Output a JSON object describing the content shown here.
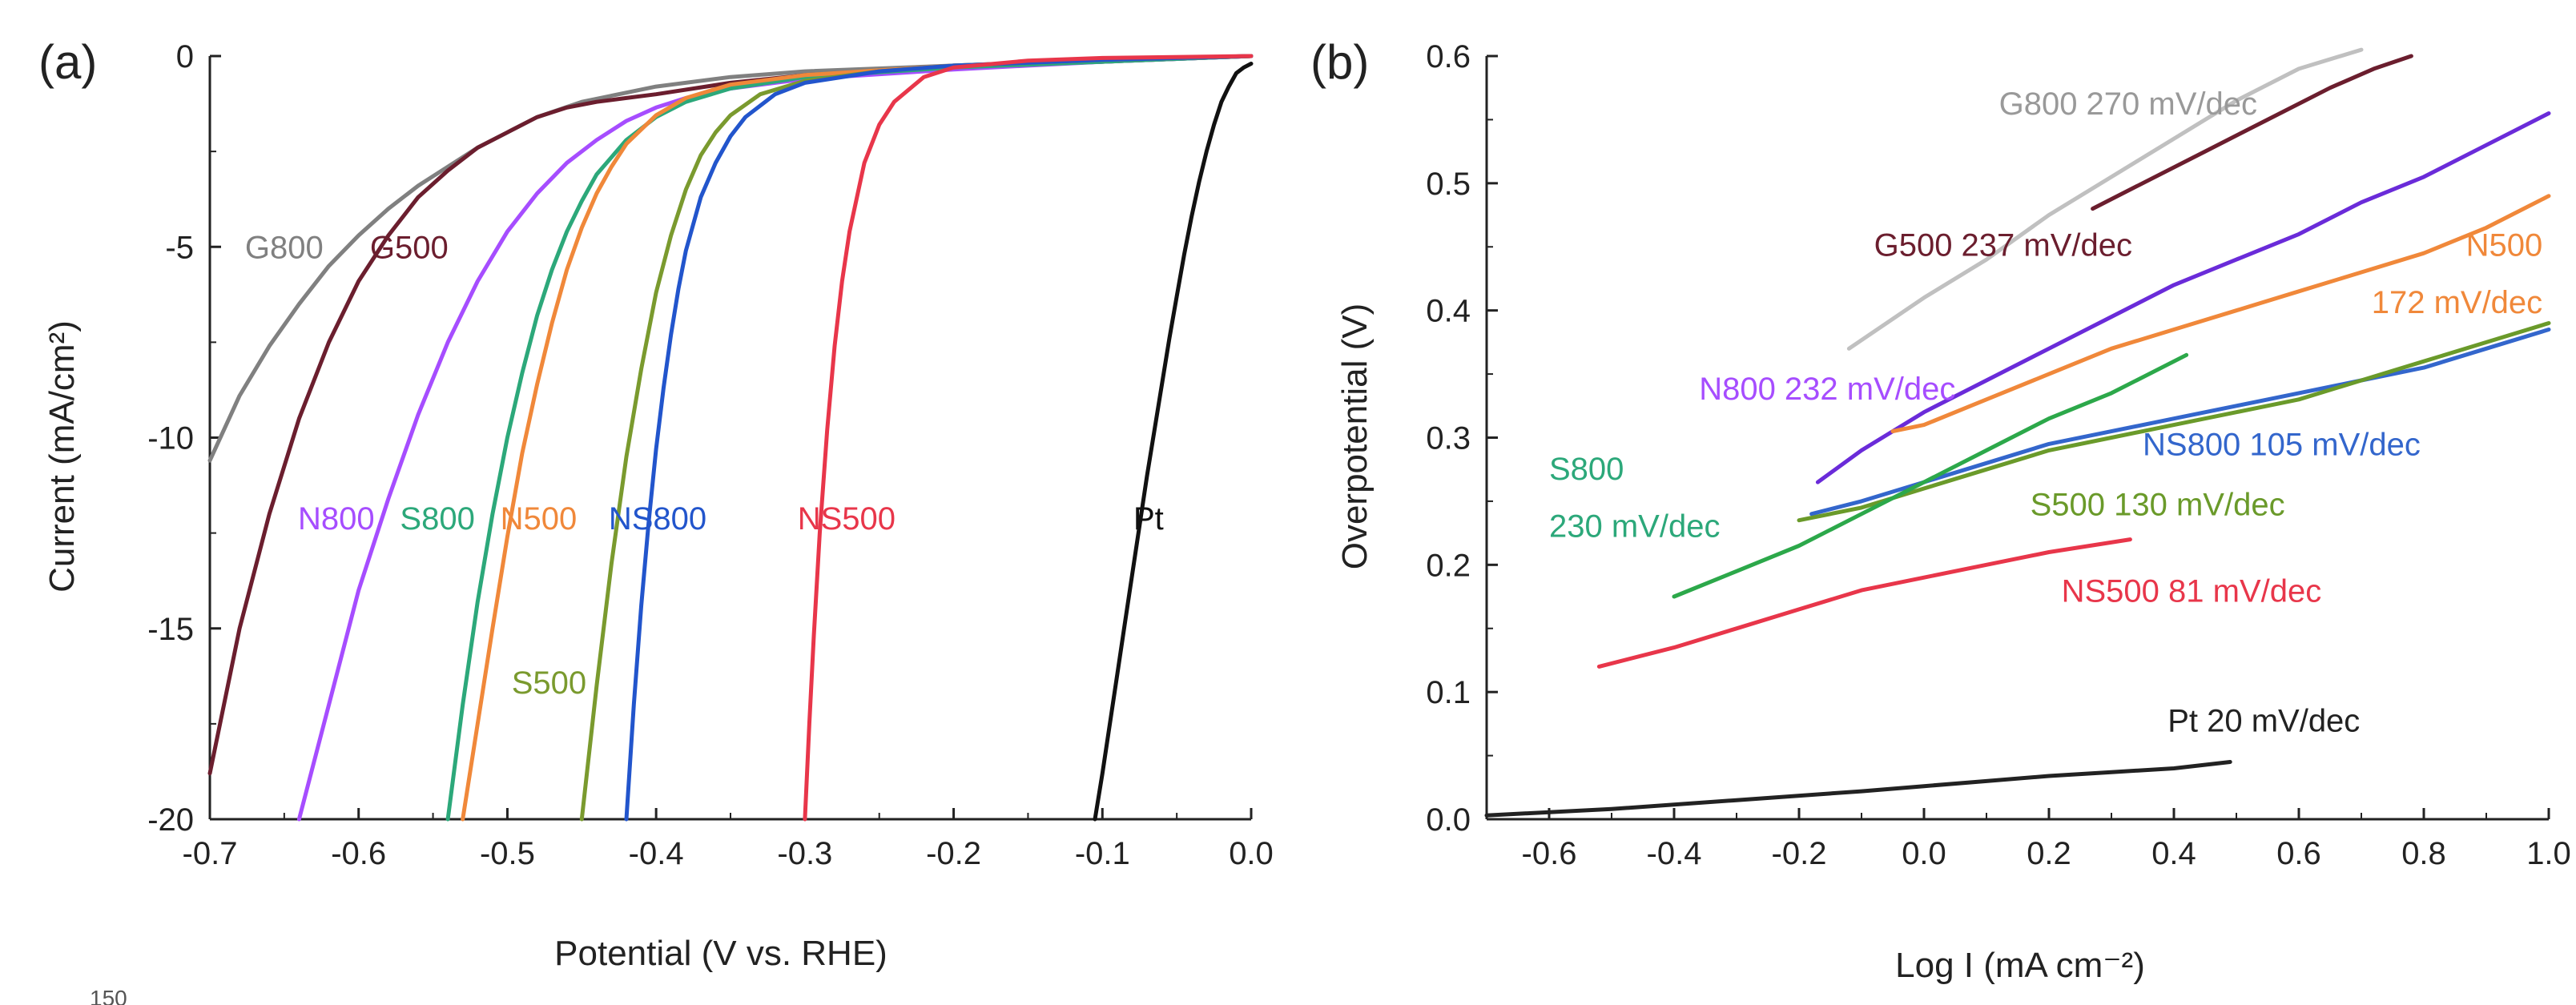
{
  "chart_data": [
    {
      "type": "line",
      "panel_label": "(a)",
      "xlabel": "Potential (V vs. RHE)",
      "ylabel": "Current (mA/cm²)",
      "xlim": [
        -0.7,
        0.0
      ],
      "ylim": [
        -20,
        0
      ],
      "xticks": [
        -0.7,
        -0.6,
        -0.5,
        -0.4,
        -0.3,
        -0.2,
        -0.1,
        0.0
      ],
      "xtick_labels": [
        "-0.7",
        "-0.6",
        "-0.5",
        "-0.4",
        "-0.3",
        "-0.2",
        "-0.1",
        "0.0"
      ],
      "yticks": [
        0,
        -5,
        -10,
        -15,
        -20
      ],
      "ytick_labels": [
        "0",
        "-5",
        "-10",
        "-15",
        "-20"
      ],
      "grid": false,
      "series": [
        {
          "name": "G800",
          "color": "#808080",
          "x": [
            -0.7,
            -0.68,
            -0.66,
            -0.64,
            -0.62,
            -0.6,
            -0.58,
            -0.56,
            -0.54,
            -0.52,
            -0.5,
            -0.48,
            -0.45,
            -0.4,
            -0.35,
            -0.3,
            -0.2,
            -0.1,
            0.0
          ],
          "y": [
            -10.6,
            -8.9,
            -7.6,
            -6.5,
            -5.5,
            -4.7,
            -4.0,
            -3.4,
            -2.9,
            -2.4,
            -2.0,
            -1.6,
            -1.2,
            -0.8,
            -0.55,
            -0.4,
            -0.25,
            -0.15,
            0.0
          ]
        },
        {
          "name": "G500",
          "color": "#6b1e2e",
          "x": [
            -0.7,
            -0.68,
            -0.66,
            -0.64,
            -0.62,
            -0.6,
            -0.58,
            -0.56,
            -0.54,
            -0.52,
            -0.5,
            -0.48,
            -0.46,
            -0.44,
            -0.42,
            -0.4,
            -0.35,
            -0.3,
            -0.2,
            -0.1,
            0.0
          ],
          "y": [
            -18.8,
            -15.0,
            -12.0,
            -9.5,
            -7.5,
            -5.9,
            -4.7,
            -3.7,
            -3.0,
            -2.4,
            -2.0,
            -1.6,
            -1.35,
            -1.2,
            -1.1,
            -1.0,
            -0.7,
            -0.5,
            -0.3,
            -0.15,
            0.0
          ]
        },
        {
          "name": "N800",
          "color": "#a64dff",
          "x": [
            -0.64,
            -0.62,
            -0.6,
            -0.58,
            -0.56,
            -0.54,
            -0.52,
            -0.5,
            -0.48,
            -0.46,
            -0.44,
            -0.42,
            -0.4,
            -0.38,
            -0.35,
            -0.3,
            -0.2,
            -0.1,
            0.0
          ],
          "y": [
            -20.0,
            -17.0,
            -14.0,
            -11.6,
            -9.4,
            -7.5,
            -5.9,
            -4.6,
            -3.6,
            -2.8,
            -2.2,
            -1.7,
            -1.35,
            -1.1,
            -0.85,
            -0.6,
            -0.35,
            -0.15,
            0.0
          ]
        },
        {
          "name": "S800",
          "color": "#2ca87a",
          "x": [
            -0.54,
            -0.53,
            -0.52,
            -0.51,
            -0.5,
            -0.49,
            -0.48,
            -0.47,
            -0.46,
            -0.45,
            -0.44,
            -0.42,
            -0.4,
            -0.38,
            -0.35,
            -0.3,
            -0.2,
            -0.1,
            0.0
          ],
          "y": [
            -20.0,
            -17.0,
            -14.3,
            -12.0,
            -10.0,
            -8.3,
            -6.8,
            -5.6,
            -4.6,
            -3.8,
            -3.1,
            -2.2,
            -1.6,
            -1.2,
            -0.85,
            -0.55,
            -0.3,
            -0.15,
            0.0
          ]
        },
        {
          "name": "N500",
          "color": "#f0883a",
          "x": [
            -0.53,
            -0.52,
            -0.51,
            -0.5,
            -0.49,
            -0.48,
            -0.47,
            -0.46,
            -0.45,
            -0.44,
            -0.43,
            -0.42,
            -0.4,
            -0.38,
            -0.35,
            -0.3,
            -0.2,
            -0.1,
            0.0
          ],
          "y": [
            -20.0,
            -17.5,
            -15.0,
            -12.6,
            -10.4,
            -8.6,
            -7.0,
            -5.6,
            -4.5,
            -3.6,
            -2.9,
            -2.3,
            -1.55,
            -1.1,
            -0.75,
            -0.5,
            -0.25,
            -0.1,
            0.0
          ]
        },
        {
          "name": "S500",
          "color": "#7a9a2e",
          "x": [
            -0.45,
            -0.44,
            -0.43,
            -0.42,
            -0.41,
            -0.4,
            -0.39,
            -0.38,
            -0.37,
            -0.36,
            -0.35,
            -0.33,
            -0.3,
            -0.25,
            -0.2,
            -0.1,
            0.0
          ],
          "y": [
            -20.0,
            -16.5,
            -13.3,
            -10.5,
            -8.2,
            -6.2,
            -4.7,
            -3.5,
            -2.6,
            -2.0,
            -1.55,
            -1.0,
            -0.65,
            -0.4,
            -0.25,
            -0.1,
            0.0
          ]
        },
        {
          "name": "NS800",
          "color": "#2255cc",
          "x": [
            -0.42,
            -0.415,
            -0.41,
            -0.405,
            -0.4,
            -0.395,
            -0.39,
            -0.385,
            -0.38,
            -0.37,
            -0.36,
            -0.35,
            -0.34,
            -0.32,
            -0.3,
            -0.25,
            -0.2,
            -0.1,
            0.0
          ],
          "y": [
            -20.0,
            -17.0,
            -14.4,
            -12.2,
            -10.3,
            -8.7,
            -7.3,
            -6.1,
            -5.1,
            -3.7,
            -2.8,
            -2.1,
            -1.6,
            -1.0,
            -0.7,
            -0.4,
            -0.25,
            -0.1,
            0.0
          ]
        },
        {
          "name": "NS500",
          "color": "#e8364a",
          "x": [
            -0.3,
            -0.297,
            -0.294,
            -0.29,
            -0.285,
            -0.28,
            -0.275,
            -0.27,
            -0.26,
            -0.25,
            -0.24,
            -0.22,
            -0.2,
            -0.15,
            -0.1,
            0.0
          ],
          "y": [
            -20.0,
            -17.5,
            -15.2,
            -12.5,
            -9.8,
            -7.6,
            -5.9,
            -4.6,
            -2.8,
            -1.8,
            -1.2,
            -0.55,
            -0.3,
            -0.12,
            -0.05,
            0.0
          ]
        },
        {
          "name": "Pt",
          "color": "#111111",
          "x": [
            -0.105,
            -0.1,
            -0.095,
            -0.09,
            -0.085,
            -0.08,
            -0.075,
            -0.07,
            -0.065,
            -0.06,
            -0.055,
            -0.05,
            -0.045,
            -0.04,
            -0.035,
            -0.03,
            -0.025,
            -0.02,
            -0.015,
            -0.01,
            -0.005,
            0.0
          ],
          "y": [
            -20.0,
            -18.8,
            -17.5,
            -16.2,
            -14.9,
            -13.6,
            -12.3,
            -11.0,
            -9.8,
            -8.6,
            -7.4,
            -6.3,
            -5.2,
            -4.2,
            -3.3,
            -2.5,
            -1.8,
            -1.2,
            -0.8,
            -0.45,
            -0.3,
            -0.2
          ]
        }
      ],
      "labels": [
        {
          "text": "G800",
          "series": "G800",
          "x": -0.65,
          "y": -5.3,
          "color": "#808080"
        },
        {
          "text": "G500",
          "series": "G500",
          "x": -0.566,
          "y": -5.3,
          "color": "#6b1e2e"
        },
        {
          "text": "N800",
          "series": "N800",
          "x": -0.615,
          "y": -12.4,
          "color": "#a64dff"
        },
        {
          "text": "S800",
          "series": "S800",
          "x": -0.547,
          "y": -12.4,
          "color": "#2ca87a"
        },
        {
          "text": "N500",
          "series": "N500",
          "x": -0.479,
          "y": -12.4,
          "color": "#f0883a"
        },
        {
          "text": "NS800",
          "series": "NS800",
          "x": -0.399,
          "y": -12.4,
          "color": "#2255cc"
        },
        {
          "text": "NS500",
          "series": "NS500",
          "x": -0.272,
          "y": -12.4,
          "color": "#e8364a"
        },
        {
          "text": "Pt",
          "series": "Pt",
          "x": -0.069,
          "y": -12.4,
          "color": "#111111"
        },
        {
          "text": "S500",
          "series": "S500",
          "x": -0.472,
          "y": -16.7,
          "color": "#7a9a2e"
        }
      ]
    },
    {
      "type": "line",
      "panel_label": "(b)",
      "xlabel": "Log I (mA cm⁻²)",
      "ylabel": "Overpotential (V)",
      "xlim": [
        -0.7,
        1.0
      ],
      "ylim": [
        0.0,
        0.6
      ],
      "xticks": [
        -0.6,
        -0.4,
        -0.2,
        0.0,
        0.2,
        0.4,
        0.6,
        0.8,
        1.0
      ],
      "xtick_labels": [
        "-0.6",
        "-0.4",
        "-0.2",
        "0.0",
        "0.2",
        "0.4",
        "0.6",
        "0.8",
        "1.0"
      ],
      "yticks": [
        0.0,
        0.1,
        0.2,
        0.3,
        0.4,
        0.5,
        0.6
      ],
      "ytick_labels": [
        "0.0",
        "0.1",
        "0.2",
        "0.3",
        "0.4",
        "0.5",
        "0.6"
      ],
      "grid": false,
      "series": [
        {
          "name": "G800",
          "color": "#c0c0c0",
          "x": [
            -0.12,
            0.0,
            0.1,
            0.2,
            0.3,
            0.4,
            0.5,
            0.6,
            0.7
          ],
          "y": [
            0.37,
            0.41,
            0.44,
            0.475,
            0.505,
            0.535,
            0.565,
            0.59,
            0.605
          ]
        },
        {
          "name": "G500",
          "color": "#6b1e2e",
          "x": [
            0.27,
            0.35,
            0.45,
            0.55,
            0.65,
            0.72,
            0.78
          ],
          "y": [
            0.48,
            0.5,
            0.525,
            0.55,
            0.575,
            0.59,
            0.6
          ]
        },
        {
          "name": "N800",
          "color": "#6a2bd9",
          "x": [
            -0.17,
            -0.1,
            0.0,
            0.1,
            0.2,
            0.3,
            0.4,
            0.5,
            0.6,
            0.7,
            0.8,
            0.9,
            1.0
          ],
          "y": [
            0.265,
            0.29,
            0.32,
            0.345,
            0.37,
            0.395,
            0.42,
            0.44,
            0.46,
            0.485,
            0.505,
            0.53,
            0.555
          ]
        },
        {
          "name": "N500",
          "color": "#f0883a",
          "x": [
            -0.05,
            0.0,
            0.1,
            0.2,
            0.3,
            0.4,
            0.5,
            0.6,
            0.7,
            0.8,
            0.9,
            1.0
          ],
          "y": [
            0.305,
            0.31,
            0.33,
            0.35,
            0.37,
            0.385,
            0.4,
            0.415,
            0.43,
            0.445,
            0.465,
            0.49
          ]
        },
        {
          "name": "NS800",
          "color": "#3366cc",
          "x": [
            -0.18,
            -0.1,
            0.0,
            0.1,
            0.2,
            0.3,
            0.4,
            0.5,
            0.6,
            0.7,
            0.8,
            0.9,
            1.0
          ],
          "y": [
            0.24,
            0.25,
            0.265,
            0.28,
            0.295,
            0.305,
            0.315,
            0.325,
            0.335,
            0.345,
            0.355,
            0.37,
            0.385
          ]
        },
        {
          "name": "S500",
          "color": "#6a9a2a",
          "x": [
            -0.2,
            -0.1,
            0.0,
            0.1,
            0.2,
            0.3,
            0.4,
            0.5,
            0.6,
            0.7,
            0.8,
            0.9,
            1.0
          ],
          "y": [
            0.235,
            0.245,
            0.26,
            0.275,
            0.29,
            0.3,
            0.31,
            0.32,
            0.33,
            0.345,
            0.36,
            0.375,
            0.39
          ]
        },
        {
          "name": "S800",
          "color": "#2ca84a",
          "x": [
            -0.4,
            -0.3,
            -0.2,
            -0.1,
            0.0,
            0.1,
            0.2,
            0.3,
            0.42
          ],
          "y": [
            0.175,
            0.195,
            0.215,
            0.24,
            0.265,
            0.29,
            0.315,
            0.335,
            0.365
          ]
        },
        {
          "name": "NS500",
          "color": "#e8364a",
          "x": [
            -0.52,
            -0.4,
            -0.3,
            -0.2,
            -0.1,
            0.0,
            0.1,
            0.2,
            0.33
          ],
          "y": [
            0.12,
            0.135,
            0.15,
            0.165,
            0.18,
            0.19,
            0.2,
            0.21,
            0.22
          ]
        },
        {
          "name": "Pt",
          "color": "#222222",
          "x": [
            -0.7,
            -0.5,
            -0.3,
            -0.1,
            0.0,
            0.1,
            0.2,
            0.3,
            0.4,
            0.49
          ],
          "y": [
            0.003,
            0.008,
            0.015,
            0.022,
            0.026,
            0.03,
            0.034,
            0.037,
            0.04,
            0.045
          ]
        }
      ],
      "labels": [
        {
          "text": "G800 270 mV/dec",
          "series": "G800",
          "x": 0.12,
          "y": 0.554,
          "color": "#999999",
          "anchor": "start"
        },
        {
          "text": "G500 237 mV/dec",
          "series": "G500",
          "x": -0.08,
          "y": 0.443,
          "color": "#6b1e2e",
          "anchor": "start"
        },
        {
          "text": "N500",
          "series": "N500",
          "x": 0.99,
          "y": 0.443,
          "color": "#f0883a",
          "anchor": "end"
        },
        {
          "text": "172 mV/dec",
          "series": "N500",
          "x": 0.99,
          "y": 0.398,
          "color": "#f0883a",
          "anchor": "end"
        },
        {
          "text": "N800 232 mV/dec",
          "series": "N800",
          "x": -0.36,
          "y": 0.33,
          "color": "#a64dff",
          "anchor": "start"
        },
        {
          "text": "S800",
          "series": "S800",
          "x": -0.6,
          "y": 0.267,
          "color": "#2ca87a",
          "anchor": "start"
        },
        {
          "text": "230 mV/dec",
          "series": "S800",
          "x": -0.6,
          "y": 0.222,
          "color": "#2ca87a",
          "anchor": "start"
        },
        {
          "text": "NS800 105 mV/dec",
          "series": "NS800",
          "x": 0.35,
          "y": 0.286,
          "color": "#3366cc",
          "anchor": "start"
        },
        {
          "text": "S500 130 mV/dec",
          "series": "S500",
          "x": 0.17,
          "y": 0.239,
          "color": "#6a9a2a",
          "anchor": "start"
        },
        {
          "text": "NS500 81 mV/dec",
          "series": "NS500",
          "x": 0.22,
          "y": 0.171,
          "color": "#e8364a",
          "anchor": "start"
        },
        {
          "text": "Pt 20 mV/dec",
          "series": "Pt",
          "x": 0.39,
          "y": 0.069,
          "color": "#222222",
          "anchor": "start"
        }
      ]
    }
  ],
  "cropped_text": "150"
}
